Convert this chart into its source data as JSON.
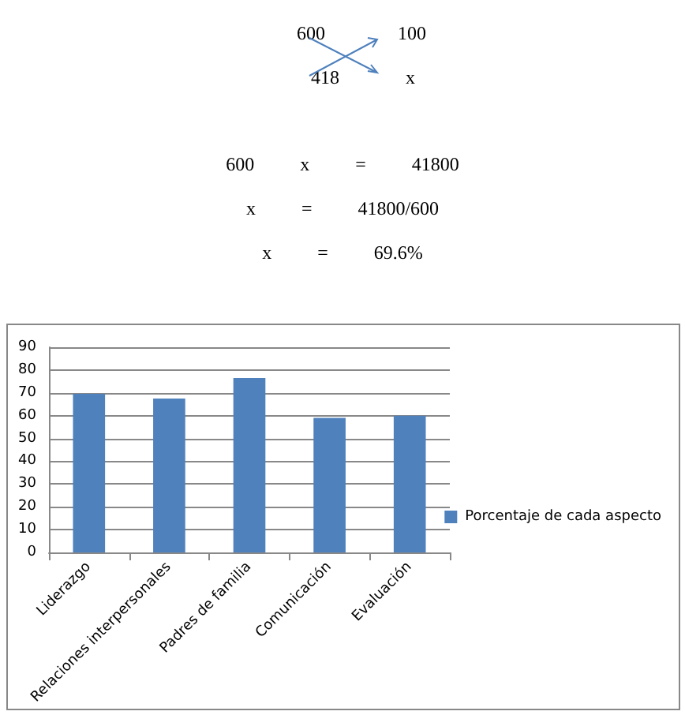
{
  "chart_data": {
    "type": "bar",
    "annotations": [
      "600",
      "100",
      "418",
      "x",
      "600 x = 41800",
      "x = 41800/600",
      "x = 69.6%"
    ],
    "categories": [
      "Liderazgo",
      "Relaciones interpersonales",
      "Padres de familia",
      "Comunicación",
      "Evaluación"
    ],
    "series": [
      {
        "name": "Porcentaje de cada aspecto",
        "color": "#4f81bd",
        "values": [
          69.6,
          67.5,
          76.5,
          59,
          60
        ]
      }
    ],
    "ylim": [
      0,
      90
    ],
    "yticks": [
      0,
      10,
      20,
      30,
      40,
      50,
      60,
      70,
      80,
      90
    ],
    "grid": "y",
    "legend": "right"
  }
}
